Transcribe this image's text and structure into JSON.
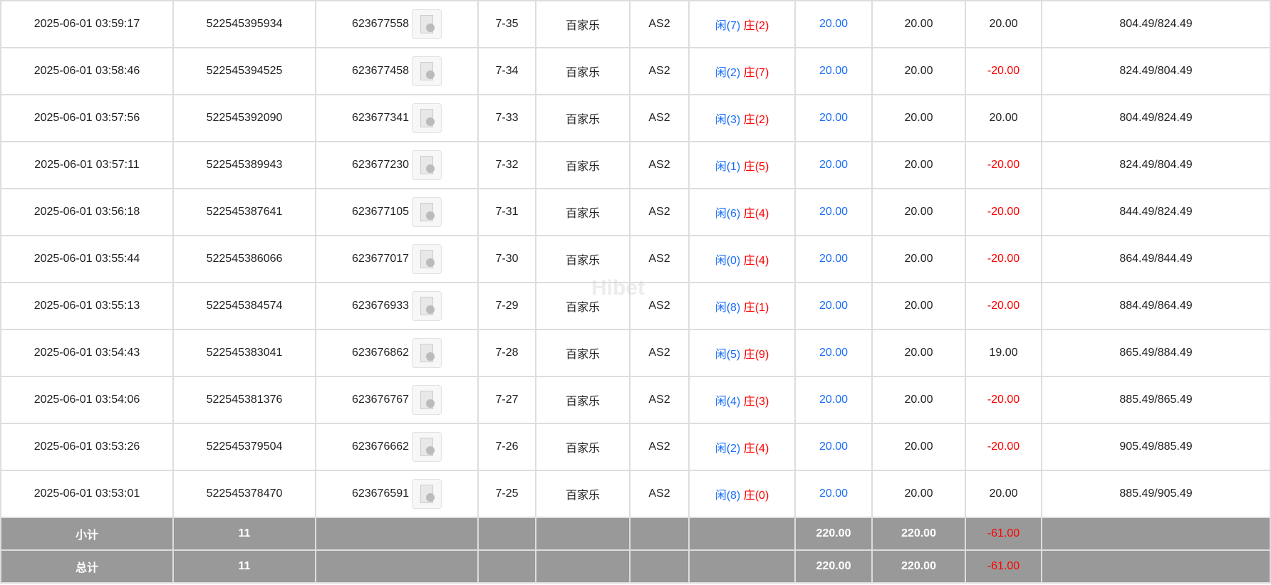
{
  "rows": [
    {
      "time": "2025-06-01 03:59:17",
      "order": "522545395934",
      "game_id": "623677558",
      "round": "7-35",
      "game": "百家乐",
      "table": "AS2",
      "player": "闲(7)",
      "banker": "庄(2)",
      "bet": "20.00",
      "valid": "20.00",
      "win": "20.00",
      "win_neg": false,
      "balance": "804.49/824.49"
    },
    {
      "time": "2025-06-01 03:58:46",
      "order": "522545394525",
      "game_id": "623677458",
      "round": "7-34",
      "game": "百家乐",
      "table": "AS2",
      "player": "闲(2)",
      "banker": "庄(7)",
      "bet": "20.00",
      "valid": "20.00",
      "win": "-20.00",
      "win_neg": true,
      "balance": "824.49/804.49"
    },
    {
      "time": "2025-06-01 03:57:56",
      "order": "522545392090",
      "game_id": "623677341",
      "round": "7-33",
      "game": "百家乐",
      "table": "AS2",
      "player": "闲(3)",
      "banker": "庄(2)",
      "bet": "20.00",
      "valid": "20.00",
      "win": "20.00",
      "win_neg": false,
      "balance": "804.49/824.49"
    },
    {
      "time": "2025-06-01 03:57:11",
      "order": "522545389943",
      "game_id": "623677230",
      "round": "7-32",
      "game": "百家乐",
      "table": "AS2",
      "player": "闲(1)",
      "banker": "庄(5)",
      "bet": "20.00",
      "valid": "20.00",
      "win": "-20.00",
      "win_neg": true,
      "balance": "824.49/804.49"
    },
    {
      "time": "2025-06-01 03:56:18",
      "order": "522545387641",
      "game_id": "623677105",
      "round": "7-31",
      "game": "百家乐",
      "table": "AS2",
      "player": "闲(6)",
      "banker": "庄(4)",
      "bet": "20.00",
      "valid": "20.00",
      "win": "-20.00",
      "win_neg": true,
      "balance": "844.49/824.49"
    },
    {
      "time": "2025-06-01 03:55:44",
      "order": "522545386066",
      "game_id": "623677017",
      "round": "7-30",
      "game": "百家乐",
      "table": "AS2",
      "player": "闲(0)",
      "banker": "庄(4)",
      "bet": "20.00",
      "valid": "20.00",
      "win": "-20.00",
      "win_neg": true,
      "balance": "864.49/844.49"
    },
    {
      "time": "2025-06-01 03:55:13",
      "order": "522545384574",
      "game_id": "623676933",
      "round": "7-29",
      "game": "百家乐",
      "table": "AS2",
      "player": "闲(8)",
      "banker": "庄(1)",
      "bet": "20.00",
      "valid": "20.00",
      "win": "-20.00",
      "win_neg": true,
      "balance": "884.49/864.49"
    },
    {
      "time": "2025-06-01 03:54:43",
      "order": "522545383041",
      "game_id": "623676862",
      "round": "7-28",
      "game": "百家乐",
      "table": "AS2",
      "player": "闲(5)",
      "banker": "庄(9)",
      "bet": "20.00",
      "valid": "20.00",
      "win": "19.00",
      "win_neg": false,
      "balance": "865.49/884.49"
    },
    {
      "time": "2025-06-01 03:54:06",
      "order": "522545381376",
      "game_id": "623676767",
      "round": "7-27",
      "game": "百家乐",
      "table": "AS2",
      "player": "闲(4)",
      "banker": "庄(3)",
      "bet": "20.00",
      "valid": "20.00",
      "win": "-20.00",
      "win_neg": true,
      "balance": "885.49/865.49"
    },
    {
      "time": "2025-06-01 03:53:26",
      "order": "522545379504",
      "game_id": "623676662",
      "round": "7-26",
      "game": "百家乐",
      "table": "AS2",
      "player": "闲(2)",
      "banker": "庄(4)",
      "bet": "20.00",
      "valid": "20.00",
      "win": "-20.00",
      "win_neg": true,
      "balance": "905.49/885.49"
    },
    {
      "time": "2025-06-01 03:53:01",
      "order": "522545378470",
      "game_id": "623676591",
      "round": "7-25",
      "game": "百家乐",
      "table": "AS2",
      "player": "闲(8)",
      "banker": "庄(0)",
      "bet": "20.00",
      "valid": "20.00",
      "win": "20.00",
      "win_neg": false,
      "balance": "885.49/905.49"
    }
  ],
  "subtotal": {
    "label": "小计",
    "count": "11",
    "bet": "220.00",
    "valid": "220.00",
    "win": "-61.00"
  },
  "total": {
    "label": "总计",
    "count": "11",
    "bet": "220.00",
    "valid": "220.00",
    "win": "-61.00"
  },
  "watermark": "Hibet",
  "colors": {
    "player": "#1a6ef5",
    "banker": "#ff0000",
    "negative": "#ff0000",
    "summary_bg": "#999999"
  }
}
